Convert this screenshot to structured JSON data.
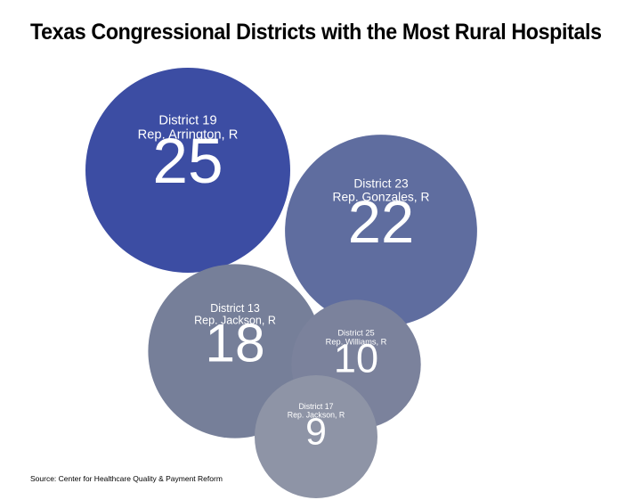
{
  "chart_data": {
    "type": "bubble",
    "title": "Texas Congressional Districts with the Most Rural Hospitals",
    "source": "Source: Center for Healthcare Quality & Payment Reform",
    "series": [
      {
        "district": "District 19",
        "representative": "Rep. Arrington, R",
        "value": 25,
        "color": "#3c4da3"
      },
      {
        "district": "District 23",
        "representative": "Rep. Gonzales, R",
        "value": 22,
        "color": "#5f6d9f"
      },
      {
        "district": "District 13",
        "representative": "Rep. Jackson, R",
        "value": 18,
        "color": "#767f99"
      },
      {
        "district": "District 25",
        "representative": "Rep.  Williams, R",
        "value": 10,
        "color": "#7b829c"
      },
      {
        "district": "District 17",
        "representative": "Rep. Jackson, R",
        "value": 9,
        "color": "#8e94a6"
      }
    ]
  }
}
